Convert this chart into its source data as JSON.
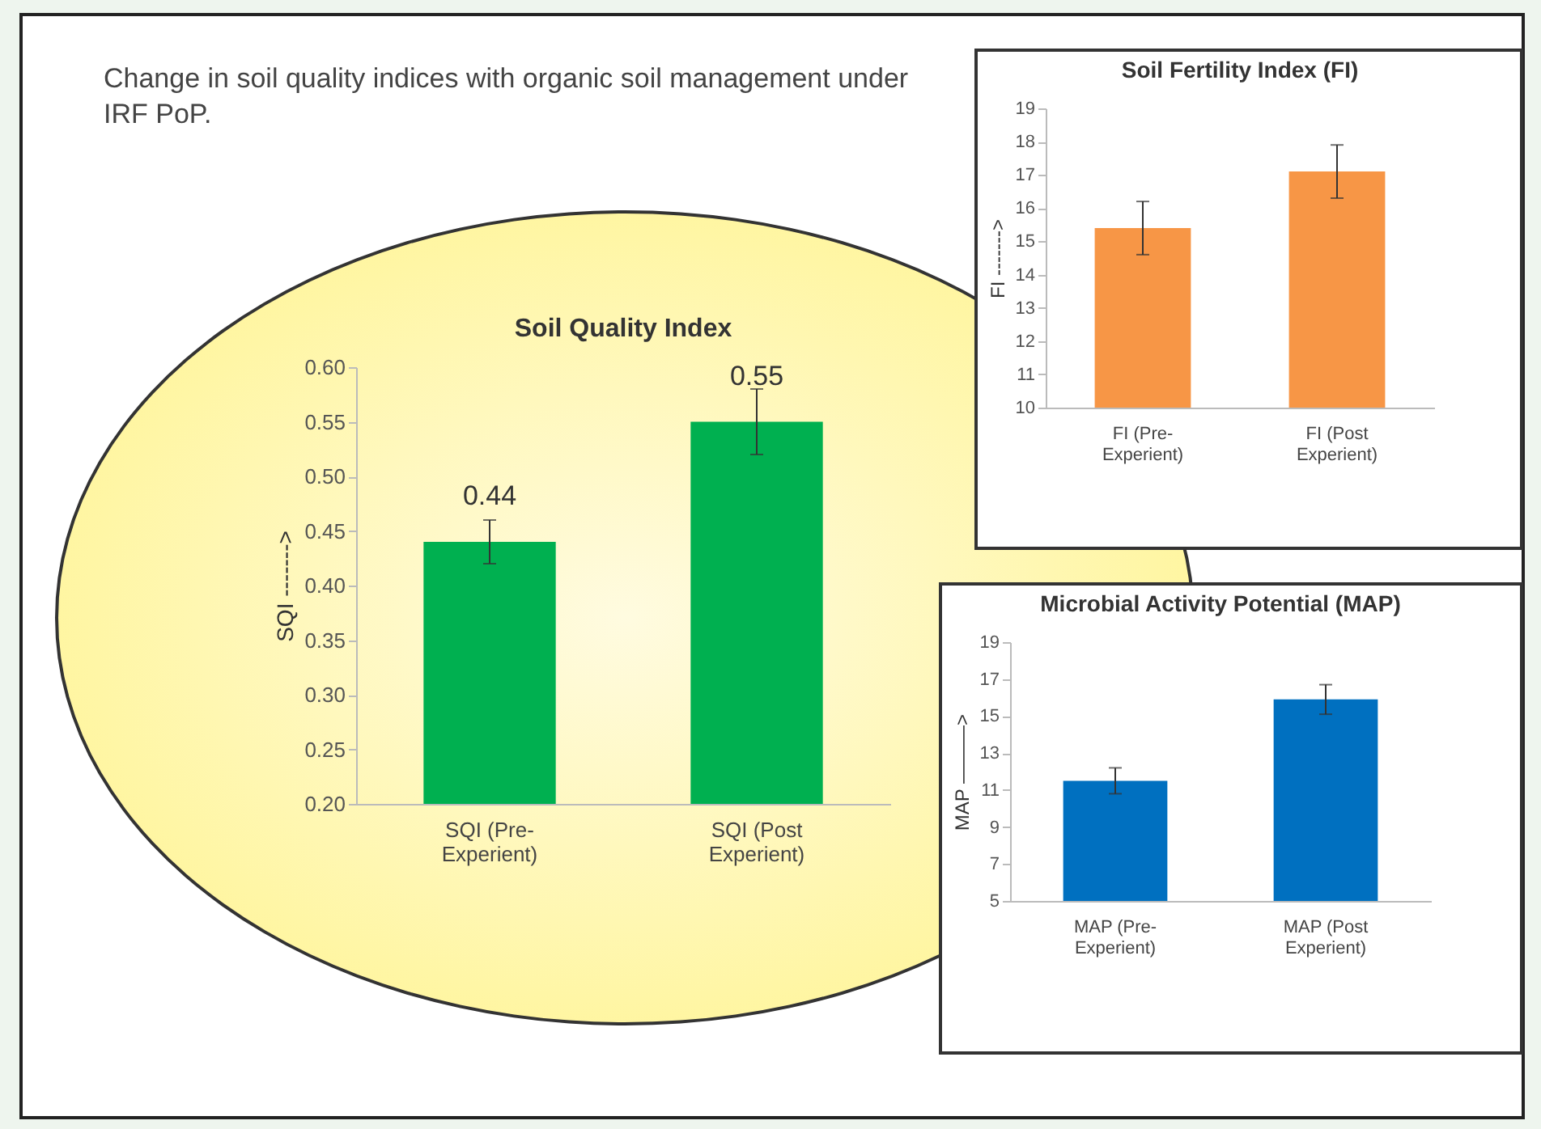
{
  "chart_data": [
    {
      "type": "bar",
      "title": "Soil Quality Index",
      "ylabel": "SQI ------->",
      "annotations": [
        "Change in soil quality indices with organic soil management under IRF PoP."
      ],
      "categories": [
        "SQI (Pre-Experient)",
        "SQI (Post Experient)"
      ],
      "values": [
        0.44,
        0.55
      ],
      "errors": [
        0.02,
        0.03
      ],
      "color": "#00b050",
      "data_labels": true,
      "ylim": [
        0.2,
        0.6
      ],
      "yticks": [
        {
          "value": 0.2,
          "label": "0.20"
        },
        {
          "value": 0.25,
          "label": "0.25"
        },
        {
          "value": 0.3,
          "label": "0.30"
        },
        {
          "value": 0.35,
          "label": "0.35"
        },
        {
          "value": 0.4,
          "label": "0.40"
        },
        {
          "value": 0.45,
          "label": "0.45"
        },
        {
          "value": 0.5,
          "label": "0.50"
        },
        {
          "value": 0.55,
          "label": "0.55"
        },
        {
          "value": 0.6,
          "label": "0.60"
        }
      ],
      "grid": false
    },
    {
      "type": "bar",
      "title": "Soil Fertility Index (FI)",
      "ylabel": "FI ------->",
      "categories": [
        "FI (Pre-Experient)",
        "FI (Post Experient)"
      ],
      "values": [
        15.4,
        17.1
      ],
      "errors": [
        0.8,
        0.8
      ],
      "color": "#f79646",
      "ylim": [
        10,
        19
      ],
      "yticks": [
        10,
        11,
        12,
        13,
        14,
        15,
        16,
        17,
        18,
        19
      ],
      "grid": false
    },
    {
      "type": "bar",
      "title": "Microbial Activity Potential (MAP)",
      "ylabel": "MAP ———>",
      "categories": [
        "MAP (Pre-Experient)",
        "MAP (Post Experient)"
      ],
      "values": [
        11.5,
        15.9
      ],
      "errors": [
        0.7,
        0.8
      ],
      "color": "#0070c0",
      "ylim": [
        5,
        19
      ],
      "yticks": [
        5,
        7,
        9,
        11,
        13,
        15,
        17,
        19
      ],
      "grid": false
    }
  ]
}
